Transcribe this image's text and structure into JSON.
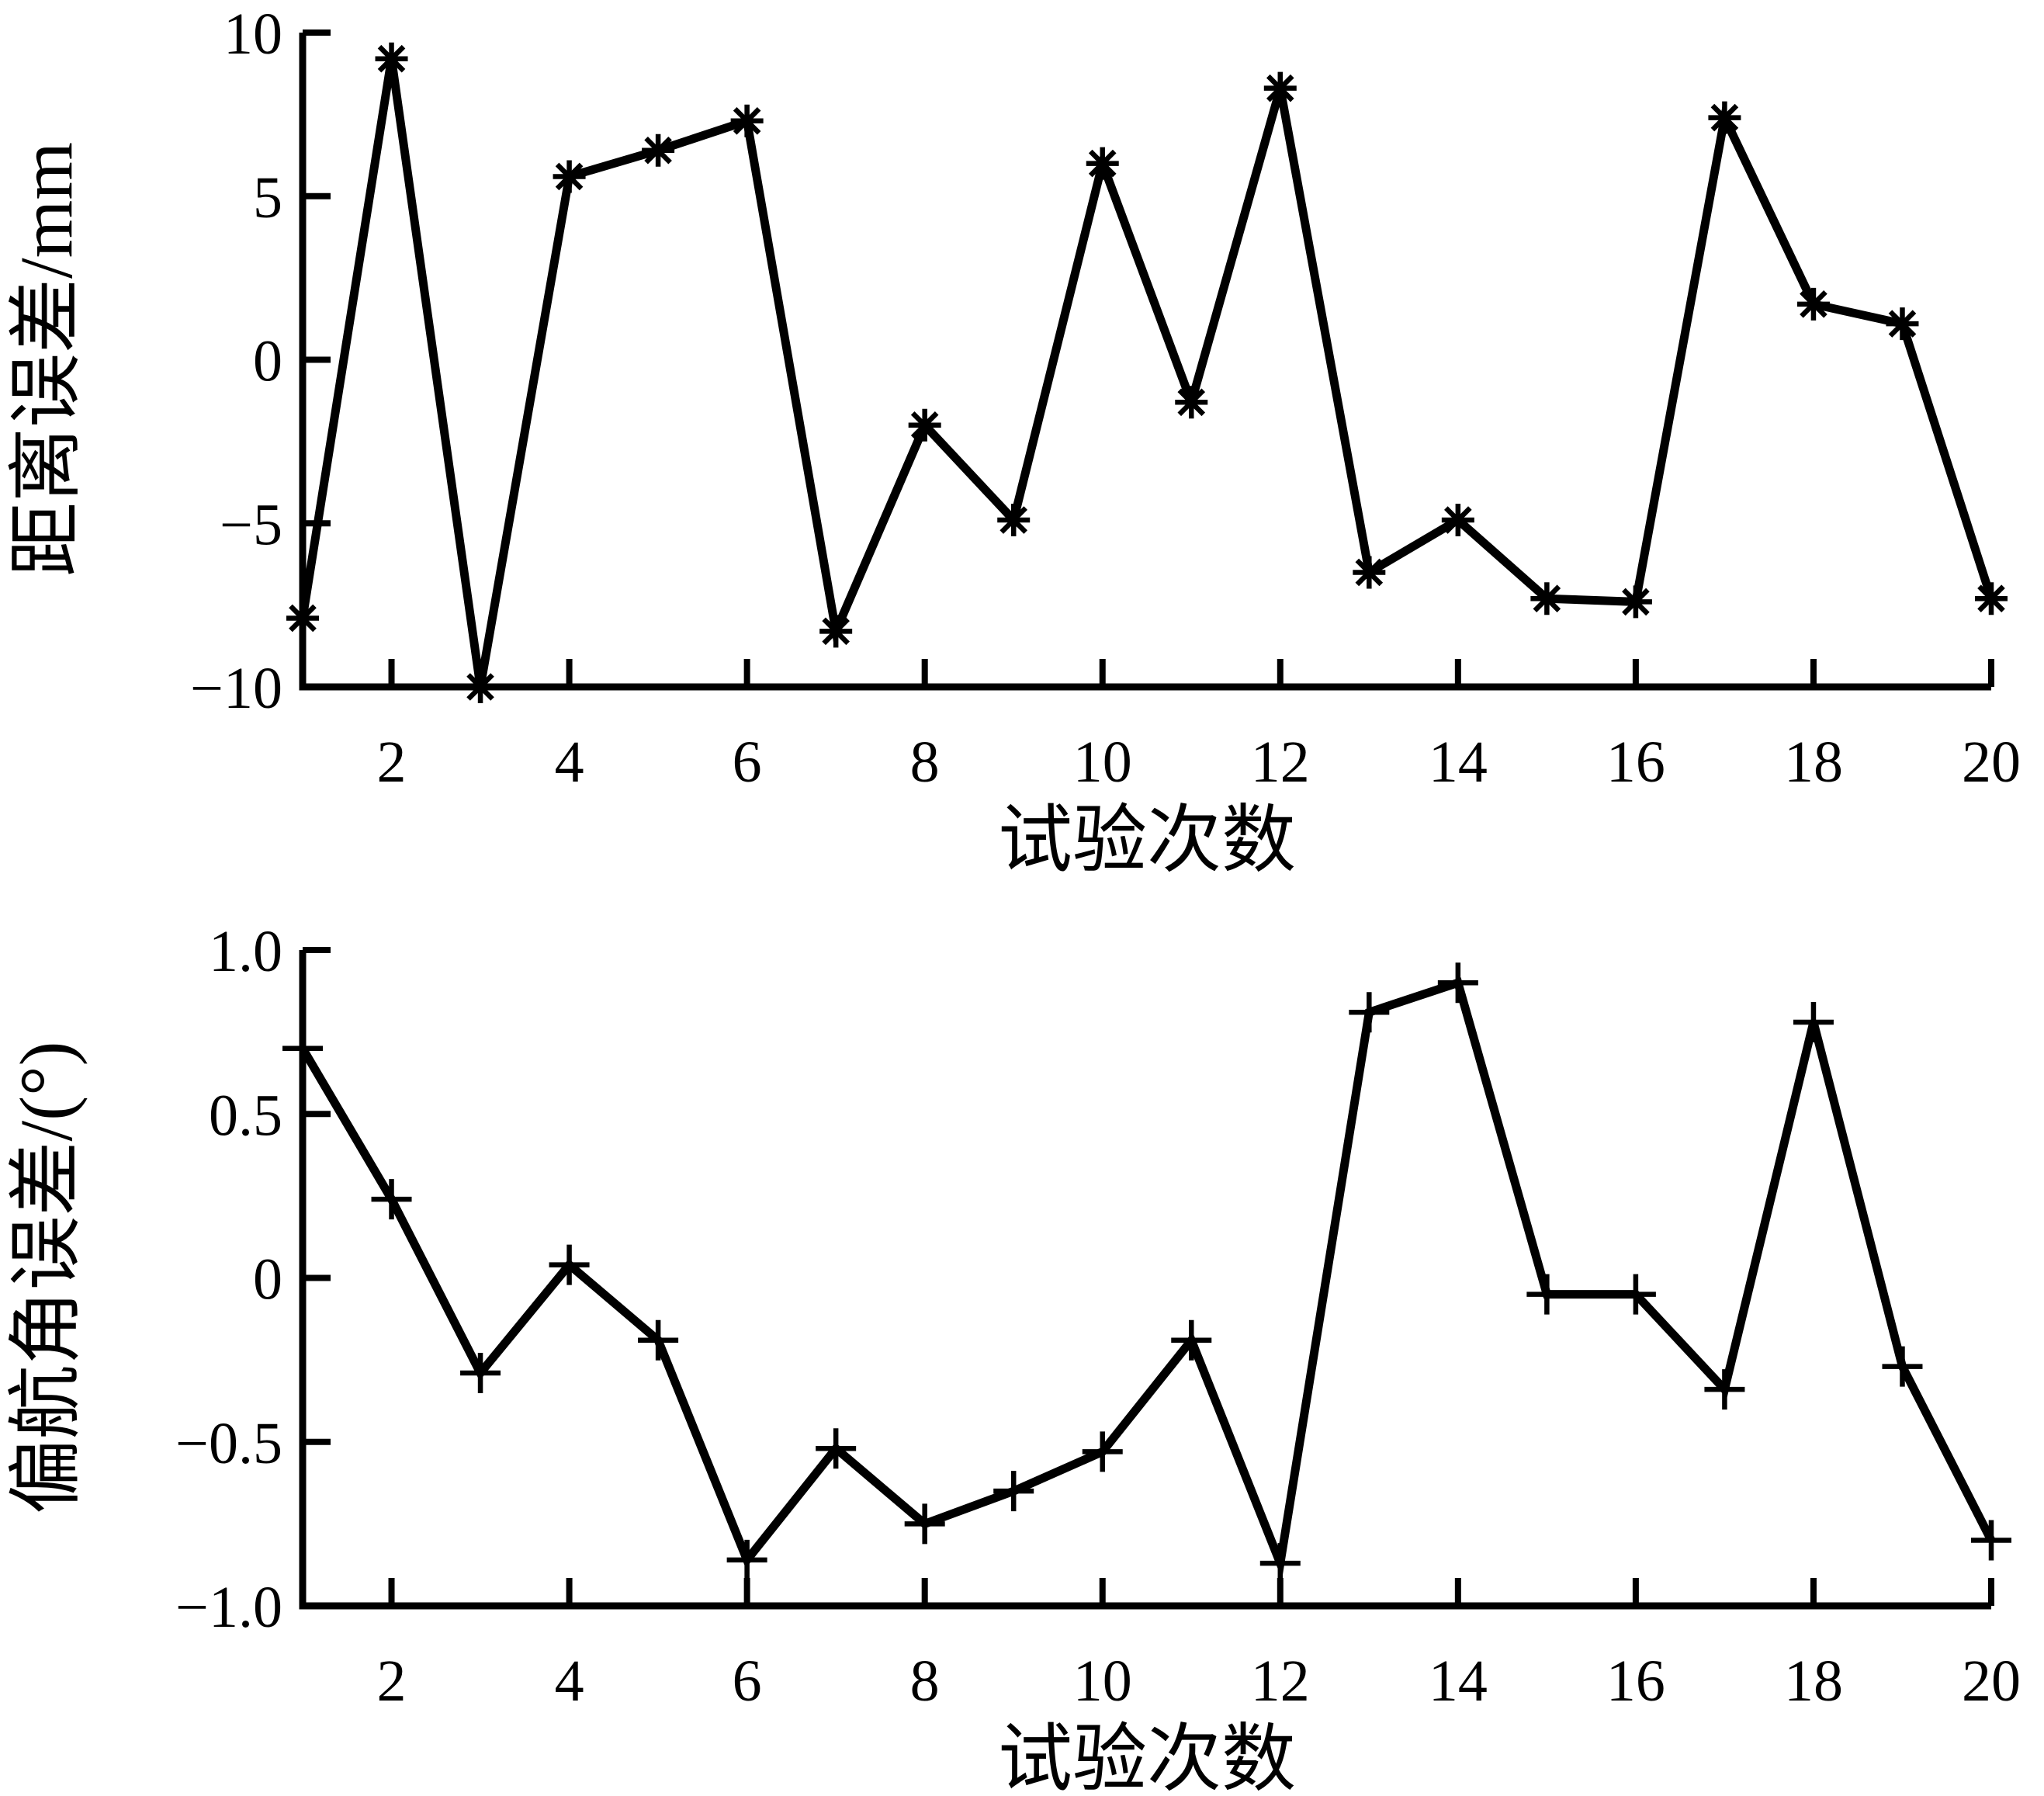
{
  "figure": {
    "background_color": "#ffffff",
    "line_color": "#000000",
    "n_trials": 20
  },
  "chart_data": [
    {
      "type": "line",
      "title": "",
      "xlabel": "试验次数",
      "ylabel": "距离误差/mm",
      "marker": "asterisk",
      "grid": false,
      "legend": null,
      "line_color": "#000000",
      "x": [
        1,
        2,
        3,
        4,
        5,
        6,
        7,
        8,
        9,
        10,
        11,
        12,
        13,
        14,
        15,
        16,
        17,
        18,
        19,
        20
      ],
      "y": [
        -7.9,
        9.2,
        -10.0,
        5.6,
        6.4,
        7.3,
        -8.3,
        -2.0,
        -4.9,
        6.0,
        -1.3,
        8.3,
        -6.5,
        -4.9,
        -7.3,
        -7.4,
        7.4,
        1.7,
        1.1,
        -7.3
      ],
      "xlim": [
        1,
        20
      ],
      "ylim": [
        -10,
        10
      ],
      "xticks": [
        2,
        4,
        6,
        8,
        10,
        12,
        14,
        16,
        18,
        20
      ],
      "xtick_labels": [
        "2",
        "4",
        "6",
        "8",
        "10",
        "12",
        "14",
        "16",
        "18",
        "20"
      ],
      "yticks": [
        10,
        5,
        0,
        -5,
        -10
      ],
      "ytick_labels": [
        "10",
        "5",
        "0",
        "−5",
        "−10"
      ]
    },
    {
      "type": "line",
      "title": "",
      "xlabel": "试验次数",
      "ylabel": "偏航角误差/(°)",
      "marker": "plus",
      "grid": false,
      "legend": null,
      "line_color": "#000000",
      "x": [
        1,
        2,
        3,
        4,
        5,
        6,
        7,
        8,
        9,
        10,
        11,
        12,
        13,
        14,
        15,
        16,
        17,
        18,
        19,
        20
      ],
      "y": [
        0.7,
        0.24,
        -0.29,
        0.04,
        -0.19,
        -0.86,
        -0.52,
        -0.75,
        -0.65,
        -0.53,
        -0.19,
        -0.87,
        0.81,
        0.9,
        -0.05,
        -0.05,
        -0.34,
        0.78,
        -0.27,
        -0.8
      ],
      "xlim": [
        1,
        20
      ],
      "ylim": [
        -1.0,
        1.0
      ],
      "xticks": [
        2,
        4,
        6,
        8,
        10,
        12,
        14,
        16,
        18,
        20
      ],
      "xtick_labels": [
        "2",
        "4",
        "6",
        "8",
        "10",
        "12",
        "14",
        "16",
        "18",
        "20"
      ],
      "yticks": [
        1.0,
        0.5,
        0,
        -0.5,
        -1.0
      ],
      "ytick_labels": [
        "1.0",
        "0.5",
        "0",
        "−0.5",
        "−1.0"
      ]
    }
  ]
}
